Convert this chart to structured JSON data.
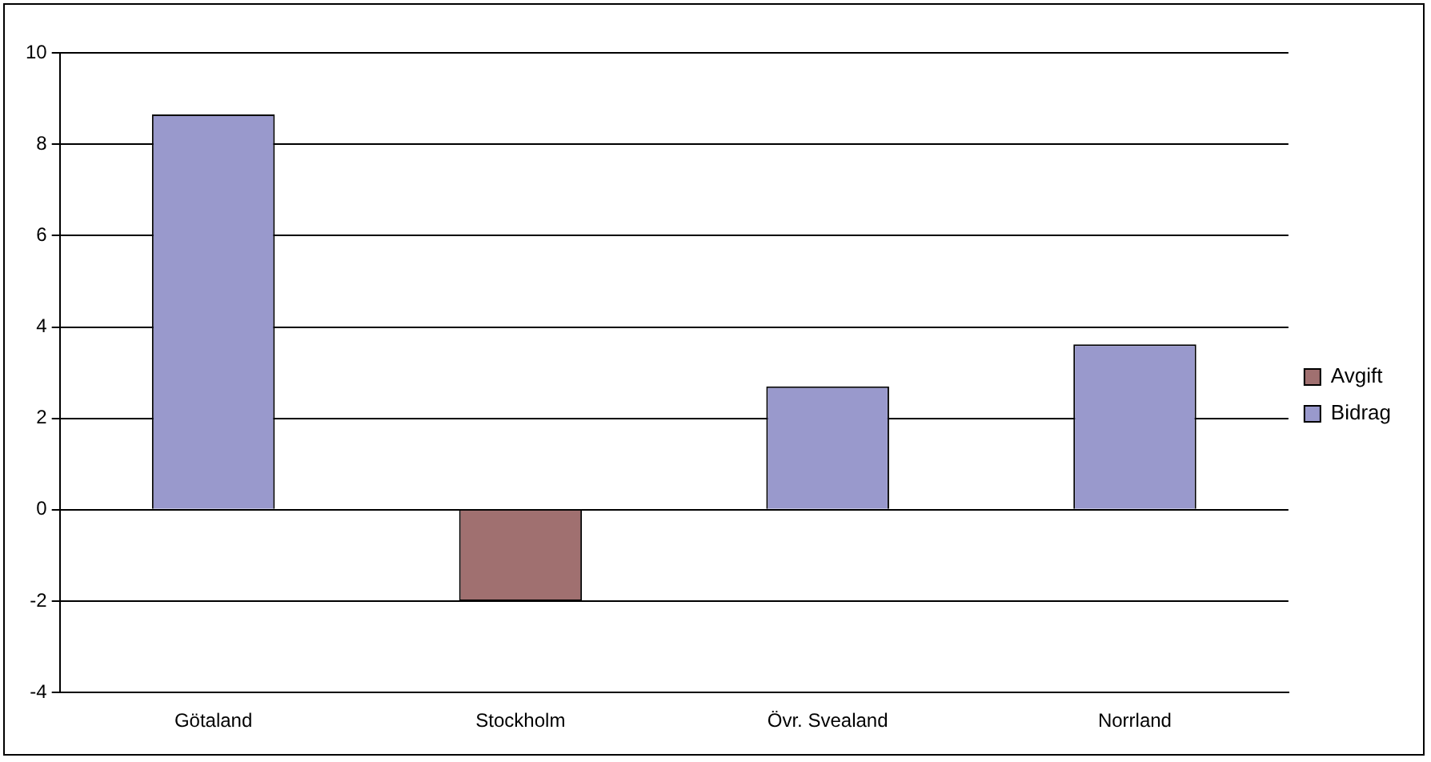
{
  "chart_data": {
    "type": "bar",
    "categories": [
      "Götaland",
      "Stockholm",
      "Övr. Svealand",
      "Norrland"
    ],
    "series": [
      {
        "name": "Avgift",
        "color": "#a07070",
        "values": [
          null,
          -2,
          null,
          null
        ]
      },
      {
        "name": "Bidrag",
        "color": "#9999cc",
        "values": [
          8.65,
          null,
          2.7,
          3.62
        ]
      }
    ],
    "ylim": [
      -4,
      10
    ],
    "yticks": [
      -4,
      -2,
      0,
      2,
      4,
      6,
      8,
      10
    ],
    "grid": "y",
    "legend": "right"
  }
}
